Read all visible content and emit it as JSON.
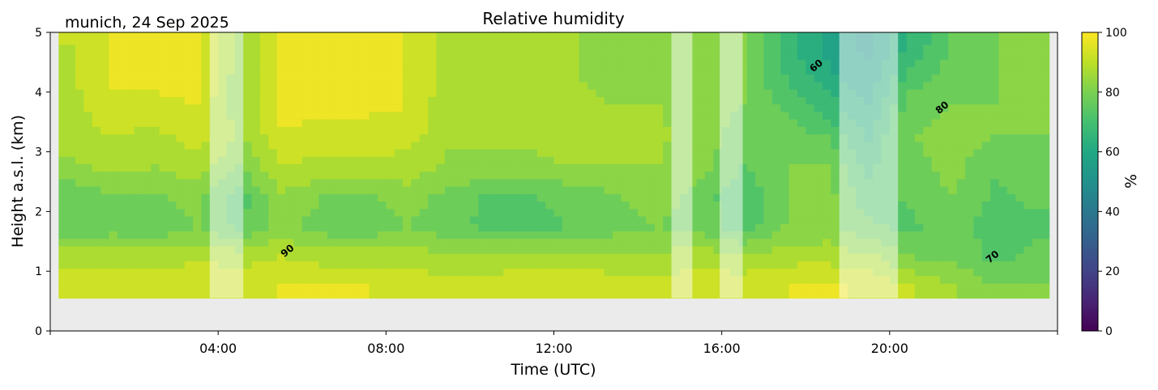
{
  "chart_data": {
    "type": "heatmap",
    "title": "Relative humidity",
    "subtitle": "munich, 24 Sep 2025",
    "xlabel": "Time (UTC)",
    "ylabel": "Height a.s.l. (km)",
    "xlim_hours": [
      0,
      24
    ],
    "ylim": [
      0,
      5
    ],
    "x_tick_labels": [
      "04:00",
      "08:00",
      "12:00",
      "16:00",
      "20:00"
    ],
    "x_tick_hours": [
      4,
      8,
      12,
      16,
      20
    ],
    "y_ticks": [
      0,
      1,
      2,
      3,
      4,
      5
    ],
    "colorbar": {
      "label": "%",
      "range": [
        0,
        100
      ],
      "ticks": [
        0,
        20,
        40,
        60,
        80,
        100
      ],
      "colormap": "viridis"
    },
    "no_data_color": "#ebebeb",
    "data_extent": {
      "hours": [
        0.2,
        23.8
      ],
      "height_km": [
        0.55,
        5
      ]
    },
    "masked_periods_hours": [
      [
        3.8,
        4.6
      ],
      [
        14.8,
        15.3
      ],
      [
        15.95,
        16.5
      ],
      [
        18.8,
        20.2
      ]
    ],
    "contour_levels": [
      60,
      70,
      80,
      90
    ],
    "contour_labels": [
      {
        "text": "90",
        "hour": 5.7,
        "km": 1.3
      },
      {
        "text": "60",
        "hour": 18.3,
        "km": 4.4
      },
      {
        "text": "80",
        "hour": 21.3,
        "km": 3.7
      },
      {
        "text": "70",
        "hour": 22.5,
        "km": 1.2
      }
    ],
    "hours": [
      0.5,
      1.5,
      2.5,
      3.5,
      4.5,
      5.5,
      6.5,
      7.5,
      8.5,
      9.5,
      10.5,
      11.5,
      12.5,
      13.5,
      14.5,
      15.5,
      16.5,
      17.5,
      18.5,
      19.5,
      20.5,
      21.5,
      22.5,
      23.5
    ],
    "heights_km": [
      0.75,
      1.25,
      1.75,
      2.25,
      2.75,
      3.25,
      3.75,
      4.25,
      4.75
    ],
    "values": [
      [
        93,
        88,
        75,
        76,
        84,
        88,
        88,
        89,
        90
      ],
      [
        93,
        88,
        77,
        80,
        86,
        90,
        94,
        96,
        96
      ],
      [
        93,
        88,
        76,
        79,
        85,
        88,
        94,
        96,
        96
      ],
      [
        94,
        89,
        80,
        82,
        88,
        92,
        95,
        96,
        96
      ],
      [
        94,
        88,
        74,
        72,
        80,
        84,
        82,
        82,
        84
      ],
      [
        95,
        90,
        82,
        84,
        90,
        94,
        97,
        97,
        97
      ],
      [
        95,
        88,
        77,
        80,
        88,
        93,
        96,
        97,
        97
      ],
      [
        95,
        88,
        76,
        79,
        88,
        93,
        96,
        96,
        96
      ],
      [
        94,
        88,
        80,
        83,
        88,
        92,
        95,
        95,
        95
      ],
      [
        92,
        86,
        76,
        78,
        84,
        86,
        86,
        88,
        88
      ],
      [
        93,
        86,
        74,
        74,
        84,
        86,
        88,
        88,
        88
      ],
      [
        94,
        87,
        74,
        75,
        84,
        86,
        87,
        86,
        86
      ],
      [
        94,
        87,
        75,
        76,
        85,
        87,
        86,
        85,
        85
      ],
      [
        93,
        86,
        78,
        80,
        85,
        86,
        85,
        84,
        84
      ],
      [
        92,
        86,
        80,
        82,
        85,
        86,
        85,
        84,
        84
      ],
      [
        93,
        88,
        78,
        78,
        82,
        82,
        82,
        82,
        84
      ],
      [
        93,
        86,
        72,
        70,
        75,
        78,
        80,
        80,
        80
      ],
      [
        95,
        88,
        80,
        80,
        80,
        78,
        74,
        70,
        68
      ],
      [
        96,
        88,
        82,
        82,
        80,
        75,
        68,
        62,
        58
      ],
      [
        94,
        86,
        76,
        72,
        68,
        64,
        60,
        56,
        54
      ],
      [
        90,
        80,
        74,
        76,
        78,
        80,
        78,
        72,
        66
      ],
      [
        86,
        78,
        78,
        80,
        82,
        82,
        80,
        78,
        76
      ],
      [
        80,
        74,
        72,
        74,
        76,
        80,
        80,
        80,
        80
      ],
      [
        80,
        76,
        74,
        76,
        78,
        80,
        82,
        82,
        80
      ]
    ]
  }
}
